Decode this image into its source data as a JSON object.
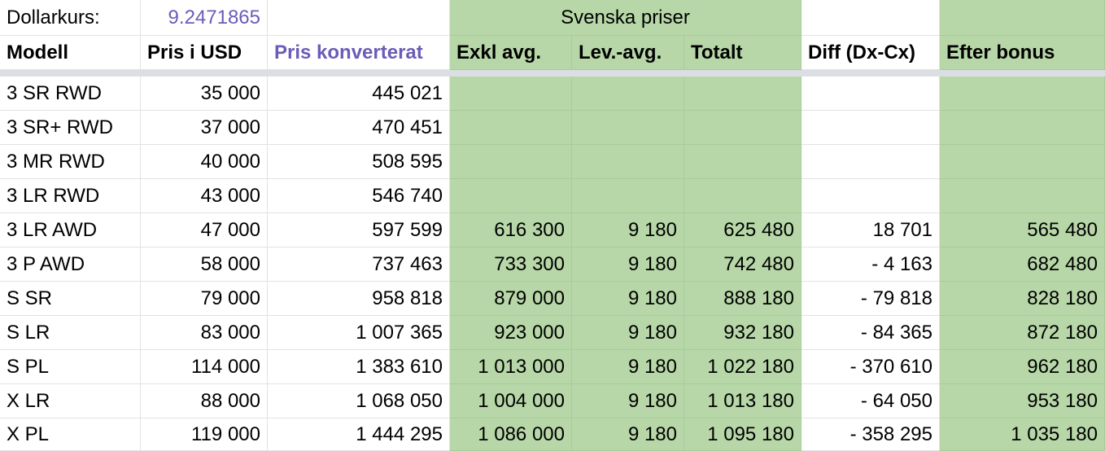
{
  "rate_label": "Dollarkurs:",
  "rate_value": "9.2471865",
  "group_header": "Svenska priser",
  "headers": [
    "Modell",
    "Pris i USD",
    "Pris konverterat",
    "Exkl avg.",
    "Lev.-avg.",
    "Totalt",
    "Diff (Dx-Cx)",
    "Efter bonus"
  ],
  "rows": [
    [
      "3 SR RWD",
      "35 000",
      "445 021",
      "",
      "",
      "",
      "",
      ""
    ],
    [
      "3 SR+ RWD",
      "37 000",
      "470 451",
      "",
      "",
      "",
      "",
      ""
    ],
    [
      "3 MR RWD",
      "40 000",
      "508 595",
      "",
      "",
      "",
      "",
      ""
    ],
    [
      "3 LR RWD",
      "43 000",
      "546 740",
      "",
      "",
      "",
      "",
      ""
    ],
    [
      "3 LR AWD",
      "47 000",
      "597 599",
      "616 300",
      "9 180",
      "625 480",
      "18 701",
      "565 480"
    ],
    [
      "3 P AWD",
      "58 000",
      "737 463",
      "733 300",
      "9 180",
      "742 480",
      "- 4 163",
      "682 480"
    ],
    [
      "S SR",
      "79 000",
      "958 818",
      "879 000",
      "9 180",
      "888 180",
      "- 79 818",
      "828 180"
    ],
    [
      "S LR",
      "83 000",
      "1 007 365",
      "923 000",
      "9 180",
      "932 180",
      "- 84 365",
      "872 180"
    ],
    [
      "S PL",
      "114 000",
      "1 383 610",
      "1 013 000",
      "9 180",
      "1 022 180",
      "- 370 610",
      "962 180"
    ],
    [
      "X LR",
      "88 000",
      "1 068 050",
      "1 004 000",
      "9 180",
      "1 013 180",
      "- 64 050",
      "953 180"
    ],
    [
      "X PL",
      "119 000",
      "1 444 295",
      "1 086 000",
      "9 180",
      "1 095 180",
      "- 358 295",
      "1 035 180"
    ]
  ],
  "colors": {
    "green_fill": "#b7d7a8",
    "purple_text": "#6b5cb8",
    "grid_line": "#e2e2e2",
    "freeze_bar": "#dbdee3"
  }
}
